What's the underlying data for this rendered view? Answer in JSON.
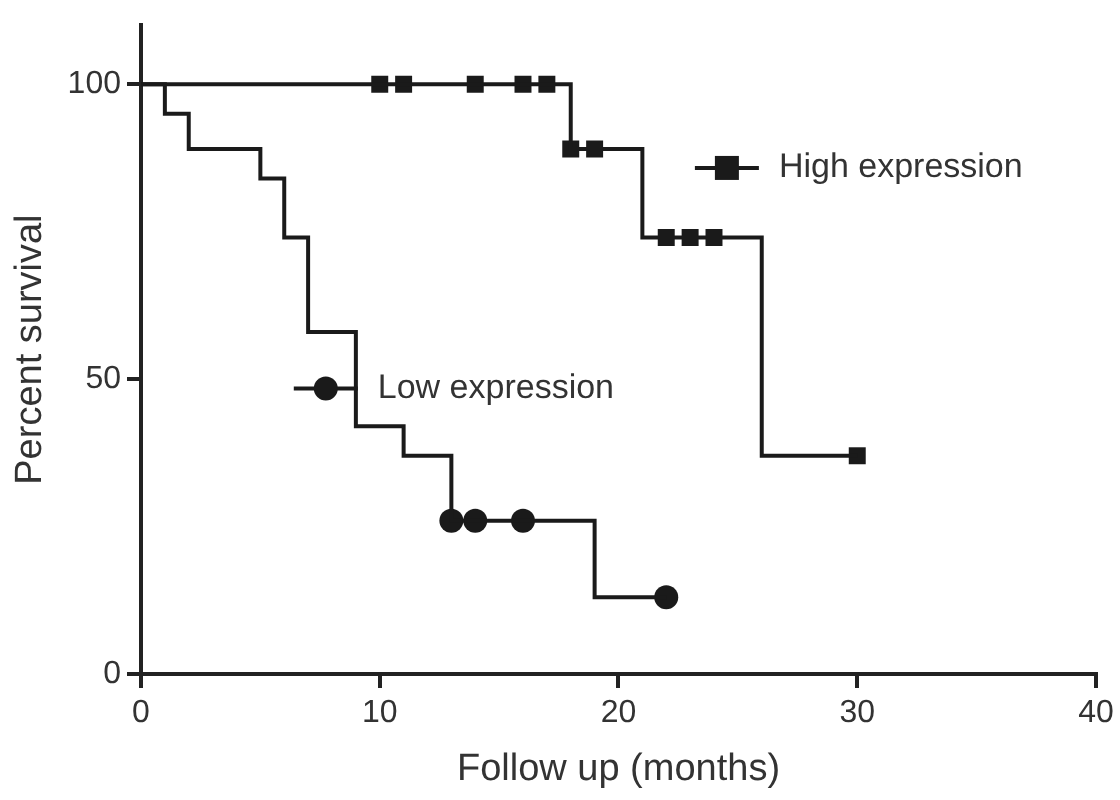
{
  "chart_data": {
    "type": "step",
    "xlabel": "Follow up (months)",
    "ylabel": "Percent survival",
    "xlim": [
      0,
      40
    ],
    "xticks": [
      0,
      10,
      20,
      30,
      40
    ],
    "ylim": [
      0,
      110
    ],
    "yticks": [
      0,
      50,
      100
    ],
    "grid": false,
    "legend": "right",
    "series": [
      {
        "name": "High expression",
        "color": "#1a1a1a",
        "x": [
          0,
          18,
          21,
          26,
          30
        ],
        "values": [
          100,
          89,
          74,
          37,
          37
        ]
      },
      {
        "type": "scatter",
        "color": "#1a1a1a",
        "marker": "square",
        "x": [
          10,
          11,
          14,
          16,
          17,
          18,
          19,
          22,
          23,
          24,
          30
        ],
        "values": [
          100,
          100,
          100,
          100,
          100,
          89,
          89,
          74,
          74,
          74,
          37
        ]
      },
      {
        "name": "Low expression",
        "color": "#1a1a1a",
        "x": [
          0,
          1,
          2,
          5,
          6,
          7,
          9,
          11,
          13,
          19,
          22
        ],
        "values": [
          100,
          95,
          89,
          84,
          74,
          58,
          42,
          37,
          26,
          13,
          13
        ]
      },
      {
        "type": "scatter",
        "color": "#1a1a1a",
        "marker": "circle",
        "x": [
          13,
          14,
          16,
          22
        ],
        "values": [
          26,
          26,
          26,
          13
        ]
      }
    ]
  }
}
